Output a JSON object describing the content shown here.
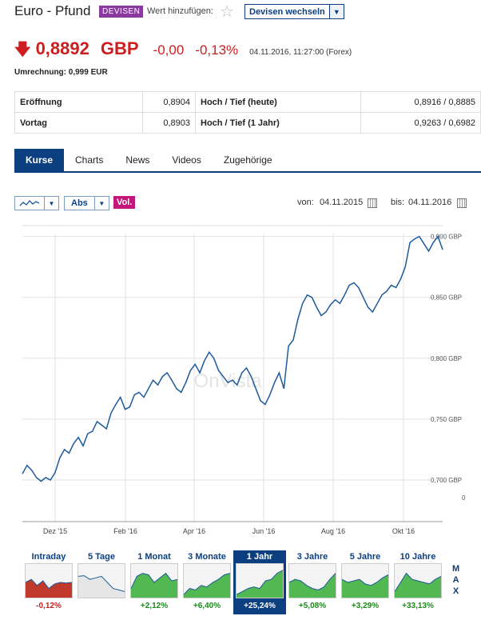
{
  "header": {
    "title": "Euro - Pfund",
    "badge": "DEVISEN",
    "add_label": "Wert hinzufügen:",
    "switch_label": "Devisen wechseln"
  },
  "quote": {
    "price": "0,8892",
    "currency": "GBP",
    "change": "-0,00",
    "change_pct": "-0,13%",
    "timestamp": "04.11.2016, 11:27:00 (Forex)",
    "conversion": "Umrechnung: 0,999 EUR",
    "down_color": "#cc1e1e"
  },
  "stats": [
    {
      "k1": "Eröffnung",
      "v1": "0,8904",
      "k2": "Hoch / Tief (heute)",
      "v2": "0,8916 / 0,8885"
    },
    {
      "k1": "Vortag",
      "v1": "0,8903",
      "k2": "Hoch / Tief (1 Jahr)",
      "v2": "0,9263 / 0,6982"
    }
  ],
  "tabs": [
    "Kurse",
    "Charts",
    "News",
    "Videos",
    "Zugehörige"
  ],
  "controls": {
    "mode": "Abs",
    "vol": "Vol.",
    "from_label": "von:",
    "from_date": "04.11.2015",
    "to_label": "bis:",
    "to_date": "04.11.2016"
  },
  "watermark": "OnVista",
  "chart_data": {
    "type": "line",
    "x_ticks": [
      "Dez '15",
      "Feb '16",
      "Apr '16",
      "Jun '16",
      "Aug '16",
      "Okt '16"
    ],
    "y_ticks": [
      "0,900 GBP",
      "0,850 GBP",
      "0,800 GBP",
      "0,750 GBP",
      "0,700 GBP",
      "0"
    ],
    "ylim": [
      0.675,
      0.905
    ],
    "color": "#1c5a9c",
    "values": [
      0.705,
      0.712,
      0.708,
      0.702,
      0.699,
      0.702,
      0.7,
      0.706,
      0.718,
      0.725,
      0.722,
      0.73,
      0.735,
      0.728,
      0.738,
      0.74,
      0.748,
      0.745,
      0.742,
      0.755,
      0.762,
      0.768,
      0.758,
      0.76,
      0.77,
      0.772,
      0.768,
      0.775,
      0.782,
      0.778,
      0.785,
      0.788,
      0.782,
      0.775,
      0.772,
      0.78,
      0.79,
      0.795,
      0.788,
      0.798,
      0.805,
      0.8,
      0.79,
      0.785,
      0.78,
      0.782,
      0.778,
      0.788,
      0.792,
      0.785,
      0.775,
      0.765,
      0.762,
      0.77,
      0.78,
      0.788,
      0.775,
      0.81,
      0.815,
      0.832,
      0.845,
      0.852,
      0.85,
      0.842,
      0.835,
      0.838,
      0.844,
      0.848,
      0.845,
      0.852,
      0.86,
      0.862,
      0.858,
      0.85,
      0.842,
      0.838,
      0.845,
      0.852,
      0.855,
      0.86,
      0.858,
      0.865,
      0.875,
      0.895,
      0.898,
      0.9,
      0.894,
      0.888,
      0.895,
      0.9,
      0.889
    ]
  },
  "periods": [
    {
      "label": "Intraday",
      "value": "-0,12%",
      "color": "#cc1e1e",
      "fill": "#c0392b",
      "trend": [
        0.5,
        0.6,
        0.4,
        0.55,
        0.3,
        0.45,
        0.5,
        0.48,
        0.5
      ]
    },
    {
      "label": "5 Tage",
      "value": "",
      "color": "#1a8a1a",
      "fill": "#e6e6e6",
      "trend": [
        0.7,
        0.72,
        0.6,
        0.65,
        0.7,
        0.5,
        0.3,
        0.25,
        0.2
      ]
    },
    {
      "label": "1 Monat",
      "value": "+2,12%",
      "color": "#1a8a1a",
      "fill": "#52b852",
      "trend": [
        0.3,
        0.7,
        0.8,
        0.75,
        0.5,
        0.65,
        0.8,
        0.55,
        0.6
      ]
    },
    {
      "label": "3 Monate",
      "value": "+6,40%",
      "color": "#1a8a1a",
      "fill": "#52b852",
      "trend": [
        0.1,
        0.3,
        0.25,
        0.4,
        0.35,
        0.5,
        0.6,
        0.75,
        0.8
      ]
    },
    {
      "label": "1 Jahr",
      "value": "+25,24%",
      "color": "#1a8a1a",
      "fill": "#52b852",
      "trend": [
        0.1,
        0.2,
        0.3,
        0.35,
        0.3,
        0.55,
        0.6,
        0.8,
        0.9
      ]
    },
    {
      "label": "3 Jahre",
      "value": "+5,08%",
      "color": "#1a8a1a",
      "fill": "#52b852",
      "trend": [
        0.5,
        0.6,
        0.55,
        0.4,
        0.3,
        0.25,
        0.35,
        0.6,
        0.8
      ]
    },
    {
      "label": "5 Jahre",
      "value": "+3,29%",
      "color": "#1a8a1a",
      "fill": "#52b852",
      "trend": [
        0.6,
        0.5,
        0.55,
        0.6,
        0.45,
        0.4,
        0.5,
        0.65,
        0.75
      ]
    },
    {
      "label": "10 Jahre",
      "value": "+33,13%",
      "color": "#1a8a1a",
      "fill": "#52b852",
      "trend": [
        0.2,
        0.5,
        0.8,
        0.6,
        0.55,
        0.5,
        0.45,
        0.6,
        0.7
      ]
    }
  ],
  "max_label": "MAX"
}
